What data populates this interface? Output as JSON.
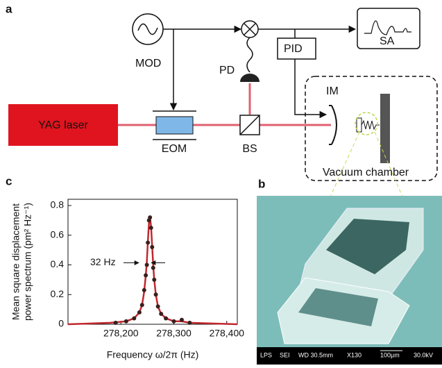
{
  "panels": {
    "a": "a",
    "b": "b",
    "c": "c"
  },
  "diagram": {
    "labels": {
      "mod": "MOD",
      "pd": "PD",
      "pid": "PID",
      "sa": "SA",
      "im": "IM",
      "laser": "YAG laser",
      "eom": "EOM",
      "bs": "BS",
      "chamber": "Vacuum chamber"
    }
  },
  "micrograph": {
    "scale_bar": [
      "LPS",
      "SEI",
      "WD 30.5mm",
      "X130",
      "100µm",
      "30.0kV"
    ]
  },
  "chart_data": {
    "type": "line",
    "xlabel": "Frequency ω/2π (Hz)",
    "ylabel": [
      "Mean square displacement",
      "power spectrum (pm² Hz⁻¹)"
    ],
    "annotation": "32 Hz",
    "xlim": [
      278100,
      278420
    ],
    "xticks": [
      {
        "value": 278200,
        "label": "278,200"
      },
      {
        "value": 278300,
        "label": "278,300"
      },
      {
        "value": 278400,
        "label": "278,400"
      }
    ],
    "ylim": [
      0,
      0.8
    ],
    "yticks": [
      0,
      0.2,
      0.4,
      0.6,
      0.8
    ],
    "series": [
      {
        "color": "#c0282d",
        "x": [
          278100,
          278180,
          278210,
          278225,
          278235,
          278240,
          278244,
          278247,
          278249,
          278251,
          278253,
          278255,
          278257,
          278259,
          278261,
          278263,
          278266,
          278270,
          278276,
          278285,
          278300,
          278315,
          278330,
          278420
        ],
        "values": [
          0,
          0.01,
          0.02,
          0.04,
          0.08,
          0.13,
          0.22,
          0.33,
          0.42,
          0.56,
          0.68,
          0.72,
          0.66,
          0.53,
          0.4,
          0.3,
          0.2,
          0.12,
          0.07,
          0.04,
          0.02,
          0.02,
          0.01,
          0
        ]
      },
      {
        "color": "#3a1f1f",
        "x": [
          278190,
          278210,
          278225,
          278235,
          278240,
          278244,
          278247,
          278249,
          278251,
          278253,
          278255,
          278257,
          278259,
          278261,
          278263,
          278266,
          278270,
          278276,
          278285,
          278300,
          278315,
          278330
        ],
        "values": [
          0.01,
          0.02,
          0.04,
          0.08,
          0.13,
          0.23,
          0.33,
          0.4,
          0.55,
          0.7,
          0.72,
          0.65,
          0.52,
          0.38,
          0.3,
          0.2,
          0.12,
          0.07,
          0.04,
          0.02,
          0.03,
          0.01
        ]
      }
    ]
  }
}
